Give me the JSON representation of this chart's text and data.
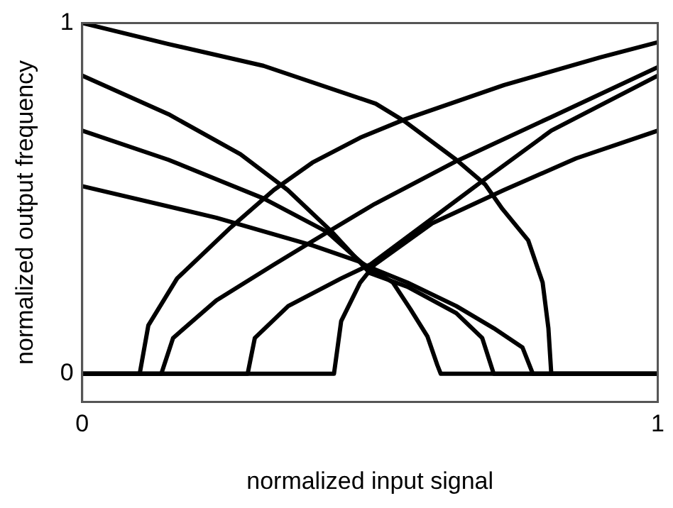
{
  "chart_data": {
    "type": "line",
    "xlabel": "normalized input signal",
    "ylabel": "normalized output frequency",
    "xlim": [
      0,
      1
    ],
    "ylim": [
      -0.08,
      1
    ],
    "xticks": [
      0,
      1
    ],
    "yticks": [
      0,
      1
    ],
    "grid": false,
    "legend": false,
    "marker": "none",
    "line_style": "solid",
    "series": [
      {
        "color": "#000000",
        "x": [
          0,
          0.15,
          0.315,
          0.51,
          0.56,
          0.65,
          0.7,
          0.73,
          0.775,
          0.8,
          0.81,
          0.815,
          1
        ],
        "values": [
          1,
          0.94,
          0.878,
          0.77,
          0.72,
          0.61,
          0.54,
          0.47,
          0.38,
          0.26,
          0.13,
          0,
          0
        ]
      },
      {
        "color": "#000000",
        "x": [
          0,
          0.15,
          0.275,
          0.357,
          0.433,
          0.5,
          0.565,
          0.65,
          0.695,
          0.715,
          1
        ],
        "values": [
          0.85,
          0.74,
          0.626,
          0.524,
          0.406,
          0.287,
          0.248,
          0.173,
          0.102,
          0,
          0
        ]
      },
      {
        "color": "#000000",
        "x": [
          0,
          0.15,
          0.315,
          0.425,
          0.49,
          0.565,
          0.65,
          0.715,
          0.765,
          0.783,
          1
        ],
        "values": [
          0.693,
          0.61,
          0.5,
          0.405,
          0.31,
          0.26,
          0.193,
          0.13,
          0.075,
          0,
          0
        ]
      },
      {
        "color": "#000000",
        "x": [
          0,
          0.233,
          0.4,
          0.483,
          0.54,
          0.57,
          0.6,
          0.617,
          0.623,
          1
        ],
        "values": [
          0.535,
          0.445,
          0.366,
          0.319,
          0.26,
          0.185,
          0.106,
          0.025,
          0,
          0
        ]
      },
      {
        "color": "#000000",
        "x": [
          0,
          0.1,
          0.115,
          0.165,
          0.258,
          0.333,
          0.4,
          0.483,
          0.56,
          0.733,
          0.9,
          1
        ],
        "values": [
          0,
          0,
          0.138,
          0.272,
          0.417,
          0.524,
          0.602,
          0.673,
          0.725,
          0.823,
          0.902,
          0.945
        ]
      },
      {
        "color": "#000000",
        "x": [
          0,
          0.1375,
          0.158,
          0.233,
          0.333,
          0.4,
          0.508,
          0.65,
          0.815,
          1
        ],
        "values": [
          0,
          0,
          0.102,
          0.209,
          0.311,
          0.378,
          0.484,
          0.606,
          0.732,
          0.874
        ]
      },
      {
        "color": "#000000",
        "x": [
          0,
          0.2875,
          0.3,
          0.358,
          0.45,
          0.5,
          0.565,
          0.69,
          0.815,
          1
        ],
        "values": [
          0,
          0,
          0.102,
          0.193,
          0.272,
          0.311,
          0.39,
          0.543,
          0.693,
          0.85
        ]
      },
      {
        "color": "#000000",
        "x": [
          0,
          0.4375,
          0.45,
          0.483,
          0.508,
          0.608,
          0.733,
          0.858,
          1
        ],
        "values": [
          0,
          0,
          0.15,
          0.26,
          0.311,
          0.429,
          0.524,
          0.614,
          0.693
        ]
      }
    ]
  }
}
